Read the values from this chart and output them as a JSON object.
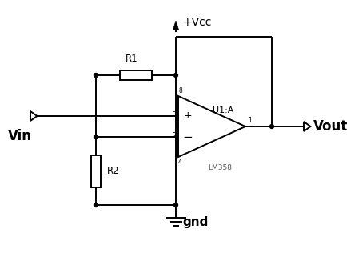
{
  "background_color": "#ffffff",
  "line_color": "#000000",
  "text_color": "#000000",
  "label_vin": "Vin",
  "label_vout": "Vout",
  "label_vcc": "+Vcc",
  "label_gnd": "gnd",
  "label_r1": "R1",
  "label_r2": "R2",
  "label_u1a": "U1:A",
  "label_lm358": "LM358",
  "label_plus": "+",
  "label_minus": "−",
  "label_pin3": "3",
  "label_pin2": "2",
  "label_pin1": "1",
  "label_pin8": "8",
  "label_pin4": "4"
}
